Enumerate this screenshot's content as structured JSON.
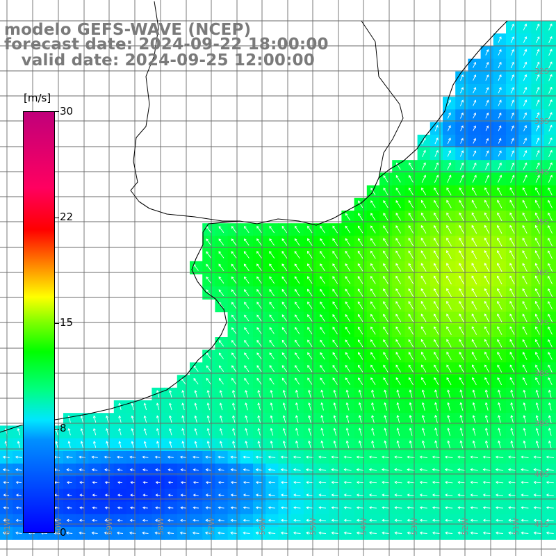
{
  "title": {
    "line1": "modelo GEFS-WAVE (NCEP)",
    "line2": "forecast date: 2024-09-22 18:00:00",
    "line3": "   valid date: 2024-09-25 12:00:00"
  },
  "colorbar": {
    "unit": "[m/s]",
    "ticks": [
      "30",
      "22",
      "15",
      "8",
      "0"
    ],
    "tick_values": [
      30,
      22,
      15,
      8,
      0
    ],
    "range": [
      0,
      30
    ],
    "colors": {
      "0": "#0000ff",
      "6.6": "#0090ff",
      "8": "#00e6ff",
      "10.2": "#00ff80",
      "12.9": "#00ff00",
      "15": "#80ff00",
      "16.8": "#ffff00",
      "19.2": "#ff8000",
      "21.6": "#ff0000",
      "24.6": "#ff0060",
      "30": "#c0007a"
    }
  },
  "map": {
    "lat_labels": [
      "32S",
      "33S",
      "34S",
      "35S",
      "36S",
      "37S",
      "38S",
      "39S",
      "40S",
      "41S"
    ],
    "lon_labels": [
      "61W",
      "60W",
      "59W",
      "58W",
      "57W",
      "56W",
      "55W",
      "54W",
      "53W",
      "52W",
      "51W"
    ],
    "field": "wind speed",
    "vector_style": "white arrows"
  }
}
